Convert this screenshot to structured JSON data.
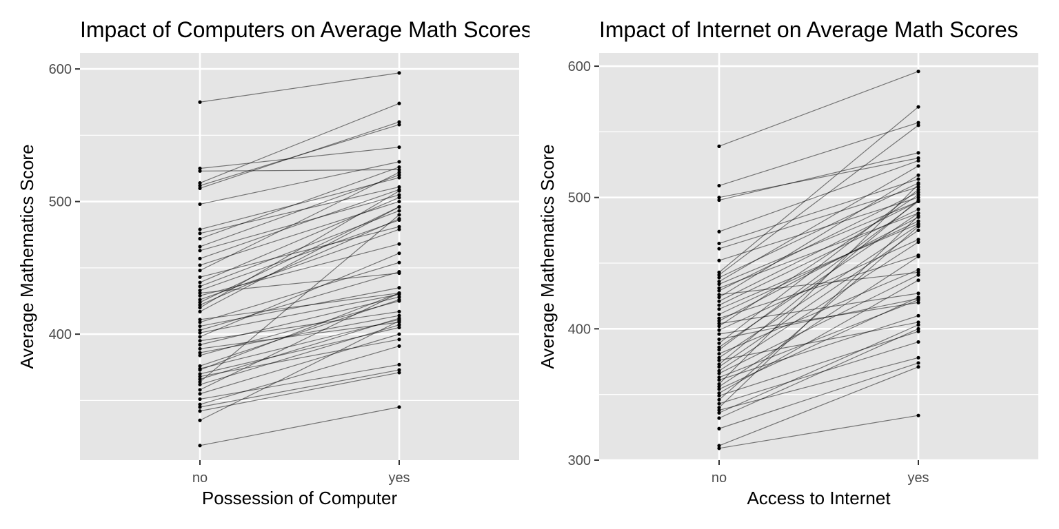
{
  "chart_data": [
    {
      "type": "line",
      "title": "Impact of Computers on Average Math Scores",
      "xlabel": "Possession of Computer",
      "ylabel": "Average Mathematics Score",
      "categories": [
        "no",
        "yes"
      ],
      "ylim": [
        305,
        612
      ],
      "yticks": [
        400,
        500,
        600
      ],
      "grid": true,
      "pairs": [
        [
          575,
          597
        ],
        [
          525,
          541
        ],
        [
          523,
          524
        ],
        [
          514,
          574
        ],
        [
          512,
          558
        ],
        [
          510,
          560
        ],
        [
          498,
          530
        ],
        [
          479,
          518
        ],
        [
          476,
          511
        ],
        [
          472,
          526
        ],
        [
          466,
          520
        ],
        [
          463,
          505
        ],
        [
          457,
          509
        ],
        [
          452,
          500
        ],
        [
          448,
          522
        ],
        [
          443,
          481
        ],
        [
          439,
          503
        ],
        [
          436,
          493
        ],
        [
          433,
          486
        ],
        [
          431,
          446
        ],
        [
          429,
          468
        ],
        [
          426,
          479
        ],
        [
          424,
          496
        ],
        [
          422,
          487
        ],
        [
          420,
          508
        ],
        [
          417,
          496
        ],
        [
          411,
          431
        ],
        [
          409,
          454
        ],
        [
          406,
          435
        ],
        [
          403,
          447
        ],
        [
          401,
          430
        ],
        [
          398,
          461
        ],
        [
          395,
          417
        ],
        [
          392,
          428
        ],
        [
          389,
          409
        ],
        [
          386,
          414
        ],
        [
          384,
          425
        ],
        [
          376,
          426
        ],
        [
          374,
          411
        ],
        [
          373,
          431
        ],
        [
          370,
          405
        ],
        [
          368,
          396
        ],
        [
          366,
          412
        ],
        [
          364,
          490
        ],
        [
          362,
          407
        ],
        [
          358,
          431
        ],
        [
          355,
          400
        ],
        [
          351,
          377
        ],
        [
          347,
          391
        ],
        [
          345,
          373
        ],
        [
          342,
          371
        ],
        [
          335,
          410
        ],
        [
          316,
          345
        ]
      ]
    },
    {
      "type": "line",
      "title": "Impact of Internet on Average Math Scores",
      "xlabel": "Access to Internet",
      "ylabel": "Average Mathematics Score",
      "categories": [
        "no",
        "yes"
      ],
      "ylim": [
        300,
        610
      ],
      "yticks": [
        300,
        400,
        500,
        600
      ],
      "grid": true,
      "pairs": [
        [
          539,
          596
        ],
        [
          509,
          557
        ],
        [
          500,
          530
        ],
        [
          498,
          534
        ],
        [
          474,
          528
        ],
        [
          465,
          514
        ],
        [
          461,
          508
        ],
        [
          452,
          500
        ],
        [
          443,
          569
        ],
        [
          441,
          555
        ],
        [
          439,
          511
        ],
        [
          436,
          524
        ],
        [
          434,
          497
        ],
        [
          431,
          488
        ],
        [
          429,
          504
        ],
        [
          426,
          443
        ],
        [
          424,
          517
        ],
        [
          421,
          497
        ],
        [
          418,
          491
        ],
        [
          415,
          480
        ],
        [
          411,
          482
        ],
        [
          408,
          456
        ],
        [
          406,
          485
        ],
        [
          404,
          427
        ],
        [
          402,
          502
        ],
        [
          399,
          468
        ],
        [
          396,
          420
        ],
        [
          392,
          423
        ],
        [
          389,
          506
        ],
        [
          386,
          488
        ],
        [
          384,
          497
        ],
        [
          381,
          445
        ],
        [
          378,
          479
        ],
        [
          376,
          405
        ],
        [
          373,
          498
        ],
        [
          371,
          475
        ],
        [
          368,
          466
        ],
        [
          366,
          441
        ],
        [
          363,
          422
        ],
        [
          361,
          410
        ],
        [
          358,
          510
        ],
        [
          356,
          455
        ],
        [
          354,
          424
        ],
        [
          351,
          437
        ],
        [
          349,
          398
        ],
        [
          346,
          478
        ],
        [
          343,
          390
        ],
        [
          340,
          486
        ],
        [
          338,
          378
        ],
        [
          336,
          403
        ],
        [
          332,
          400
        ],
        [
          324,
          374
        ],
        [
          311,
          371
        ],
        [
          309,
          334
        ]
      ]
    }
  ]
}
